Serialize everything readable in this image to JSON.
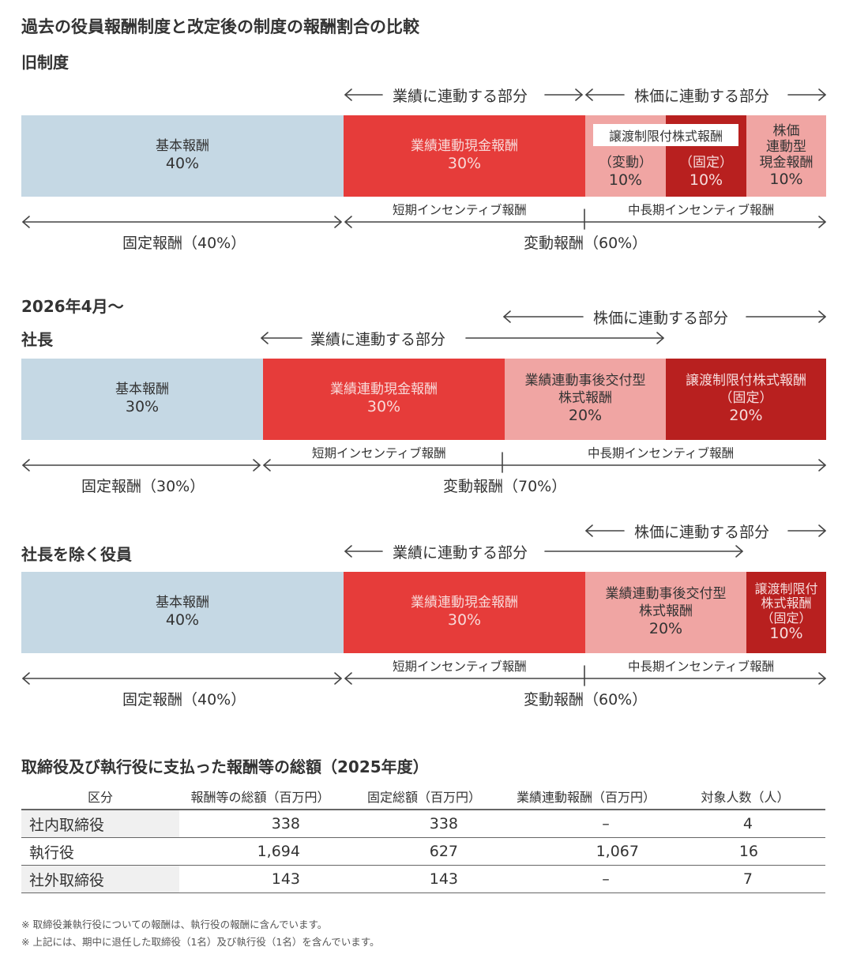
{
  "title": "過去の役員報酬制度と改定後の制度の報酬割合の比較",
  "chart_data": [
    {
      "type": "bar",
      "orientation": "horizontal-stacked",
      "heading": "旧制度",
      "segments": [
        {
          "label": "基本報酬",
          "value": 40,
          "text": "40%",
          "color": "#c5d8e4"
        },
        {
          "label": "業績連動現金報酬",
          "value": 30,
          "text": "30%",
          "color": "#e63c3a"
        },
        {
          "label": "（変動）",
          "value": 10,
          "text": "10%",
          "color": "#f0a5a3"
        },
        {
          "label": "（固定）",
          "value": 10,
          "text": "10%",
          "color": "#b8201f"
        },
        {
          "label": "株価連動型現金報酬",
          "label_lines": [
            "株価",
            "連動型",
            "現金報酬"
          ],
          "value": 10,
          "text": "10%",
          "color": "#f0a5a3"
        }
      ],
      "group_tag": "譲渡制限付株式報酬",
      "performance_linked": "業績に連動する部分",
      "stock_linked": "株価に連動する部分",
      "short_term": "短期インセンティブ報酬",
      "mid_long_term": "中長期インセンティブ報酬",
      "fixed": "固定報酬（40%）",
      "variable": "変動報酬（60%）"
    },
    {
      "type": "bar",
      "orientation": "horizontal-stacked",
      "period": "2026年4月～",
      "heading": "社長",
      "segments": [
        {
          "label": "基本報酬",
          "value": 30,
          "text": "30%",
          "color": "#c5d8e4"
        },
        {
          "label": "業績連動現金報酬",
          "value": 30,
          "text": "30%",
          "color": "#e63c3a"
        },
        {
          "label": "業績連動事後交付型株式報酬",
          "label_lines": [
            "業績連動事後交付型",
            "株式報酬"
          ],
          "value": 20,
          "text": "20%",
          "color": "#f0a5a3"
        },
        {
          "label": "譲渡制限付株式報酬（固定）",
          "label_lines": [
            "譲渡制限付株式報酬",
            "（固定）"
          ],
          "value": 20,
          "text": "20%",
          "color": "#b8201f"
        }
      ],
      "performance_linked": "業績に連動する部分",
      "stock_linked": "株価に連動する部分",
      "short_term": "短期インセンティブ報酬",
      "mid_long_term": "中長期インセンティブ報酬",
      "fixed": "固定報酬（30%）",
      "variable": "変動報酬（70%）"
    },
    {
      "type": "bar",
      "orientation": "horizontal-stacked",
      "heading": "社長を除く役員",
      "segments": [
        {
          "label": "基本報酬",
          "value": 40,
          "text": "40%",
          "color": "#c5d8e4"
        },
        {
          "label": "業績連動現金報酬",
          "value": 30,
          "text": "30%",
          "color": "#e63c3a"
        },
        {
          "label": "業績連動事後交付型株式報酬",
          "label_lines": [
            "業績連動事後交付型",
            "株式報酬"
          ],
          "value": 20,
          "text": "20%",
          "color": "#f0a5a3"
        },
        {
          "label": "譲渡制限付株式報酬（固定）",
          "label_lines": [
            "譲渡制限付",
            "株式報酬",
            "（固定）"
          ],
          "value": 10,
          "text": "10%",
          "color": "#b8201f"
        }
      ],
      "performance_linked": "業績に連動する部分",
      "stock_linked": "株価に連動する部分",
      "short_term": "短期インセンティブ報酬",
      "mid_long_term": "中長期インセンティブ報酬",
      "fixed": "固定報酬（40%）",
      "variable": "変動報酬（60%）"
    },
    {
      "type": "table",
      "title": "取締役及び執行役に支払った報酬等の総額（2025年度）",
      "columns": [
        "区分",
        "報酬等の総額（百万円）",
        "固定総額（百万円）",
        "業績連動報酬（百万円）",
        "対象人数（人）"
      ],
      "rows": [
        [
          "社内取締役",
          "338",
          "338",
          "–",
          "4"
        ],
        [
          "執行役",
          "1,694",
          "627",
          "1,067",
          "16"
        ],
        [
          "社外取締役",
          "143",
          "143",
          "–",
          "7"
        ]
      ]
    }
  ],
  "notes": [
    "※ 取締役兼執行役についての報酬は、執行役の報酬に含んでいます。",
    "※ 上記には、期中に退任した取締役（1名）及び執行役（1名）を含んでいます。"
  ]
}
